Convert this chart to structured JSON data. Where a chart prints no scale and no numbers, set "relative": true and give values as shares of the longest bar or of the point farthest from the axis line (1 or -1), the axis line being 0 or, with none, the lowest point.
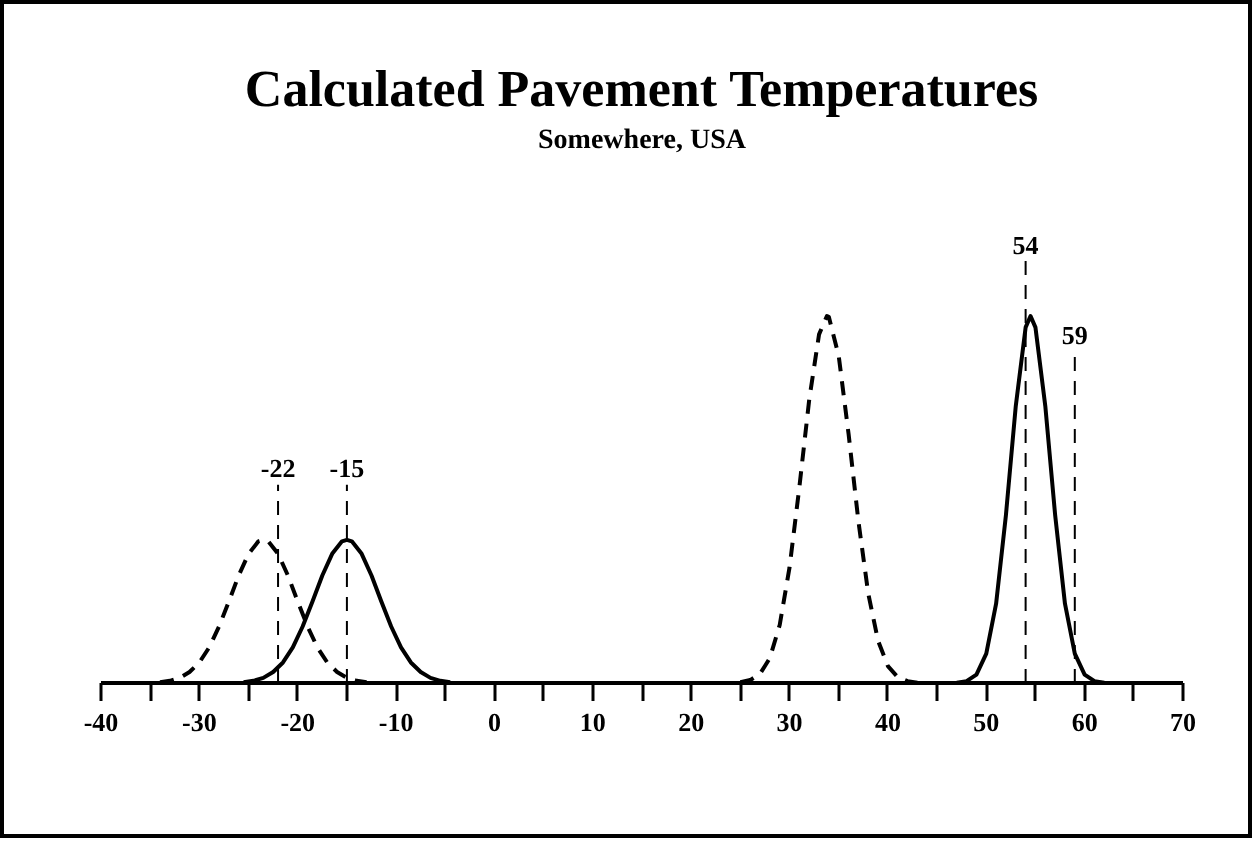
{
  "chart_data": {
    "type": "line",
    "title": "Calculated Pavement Temperatures",
    "subtitle": "Somewhere, USA",
    "relative": true,
    "xlim": [
      -40,
      70
    ],
    "xticks": [
      -40,
      {
        "value": -35,
        "label": null
      },
      -30,
      {
        "value": -25,
        "label": null
      },
      -20,
      {
        "value": -15,
        "label": null
      },
      -10,
      {
        "value": -5,
        "label": null
      },
      0,
      {
        "value": 5,
        "label": null
      },
      10,
      {
        "value": 15,
        "label": null
      },
      20,
      {
        "value": 25,
        "label": null
      },
      30,
      {
        "value": 35,
        "label": null
      },
      40,
      {
        "value": 45,
        "label": null
      },
      50,
      {
        "value": 55,
        "label": null
      },
      60,
      {
        "value": 65,
        "label": null
      },
      70
    ],
    "series": [
      {
        "color": "#000000",
        "line_style": "dashed",
        "x": [
          -34,
          -33,
          -32,
          -31,
          -30,
          -29,
          -28,
          -27,
          -26,
          -25,
          -24,
          -23.5,
          -23,
          -22,
          -21,
          -20,
          -19,
          -18,
          -17,
          -16,
          -15,
          -14,
          -13
        ],
        "values": [
          0.002,
          0.006,
          0.014,
          0.03,
          0.056,
          0.097,
          0.154,
          0.222,
          0.293,
          0.352,
          0.386,
          0.39,
          0.386,
          0.352,
          0.293,
          0.222,
          0.154,
          0.097,
          0.056,
          0.03,
          0.014,
          0.006,
          0.002
        ]
      },
      {
        "color": "#000000",
        "line_style": "solid",
        "x": [
          -25.5,
          -24.5,
          -23.5,
          -22.5,
          -21.5,
          -20.5,
          -19.5,
          -18.5,
          -17.5,
          -16.5,
          -15.5,
          -15,
          -14.5,
          -13.5,
          -12.5,
          -11.5,
          -10.5,
          -9.5,
          -8.5,
          -7.5,
          -6.5,
          -5.5,
          -4.5
        ],
        "values": [
          0.002,
          0.006,
          0.014,
          0.03,
          0.056,
          0.097,
          0.154,
          0.222,
          0.293,
          0.352,
          0.386,
          0.39,
          0.386,
          0.352,
          0.293,
          0.222,
          0.154,
          0.097,
          0.056,
          0.03,
          0.014,
          0.006,
          0.002
        ]
      },
      {
        "color": "#000000",
        "line_style": "dashed",
        "x": [
          25,
          26,
          27,
          28,
          29,
          30,
          31,
          32,
          33,
          33.8,
          34,
          35,
          36,
          37,
          38,
          39,
          40,
          41,
          42,
          43
        ],
        "values": [
          0.002,
          0.008,
          0.025,
          0.068,
          0.158,
          0.315,
          0.534,
          0.772,
          0.95,
          1,
          0.997,
          0.891,
          0.679,
          0.441,
          0.244,
          0.115,
          0.046,
          0.016,
          0.005,
          0.001
        ]
      },
      {
        "color": "#000000",
        "line_style": "solid",
        "x": [
          46,
          47,
          48,
          49,
          50,
          51,
          52,
          53,
          54,
          54.5,
          55,
          56,
          57,
          58,
          59,
          60,
          61,
          62,
          63
        ],
        "values": [
          0.0001,
          0.001,
          0.005,
          0.023,
          0.08,
          0.216,
          0.458,
          0.755,
          0.969,
          1,
          0.969,
          0.755,
          0.458,
          0.216,
          0.08,
          0.023,
          0.005,
          0.001,
          0.0001
        ]
      }
    ],
    "ref_lines": [
      {
        "axis": "x",
        "value": -22,
        "label": "-22",
        "color": "#000000",
        "line_style": "dashed"
      },
      {
        "axis": "x",
        "value": -15,
        "label": "-15",
        "color": "#000000",
        "line_style": "dashed"
      },
      {
        "axis": "x",
        "value": 54,
        "label": "54",
        "color": "#000000",
        "line_style": "dashed"
      },
      {
        "axis": "x",
        "value": 59,
        "label": "59",
        "color": "#000000",
        "line_style": "dashed"
      }
    ]
  }
}
